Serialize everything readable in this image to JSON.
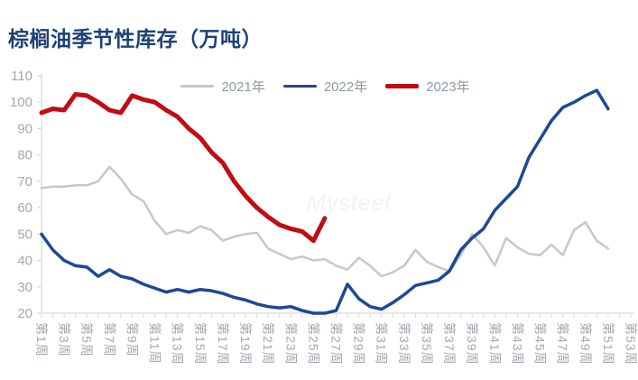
{
  "watermark": "Mysteel",
  "colors": {
    "background": "#ffffff",
    "title": "#1e4077",
    "axis": "#d9d9d9",
    "tick_label": "#a3a7af",
    "legend_text": "#8e98a6",
    "watermark": "#f2f2f4",
    "series_2021": "#c7c7c7",
    "series_2022": "#1c4899",
    "series_2023": "#c00d14"
  },
  "chart_data": {
    "type": "line",
    "title": "棕榈油季节性库存（万吨）",
    "xlabel": "",
    "ylabel": "万吨",
    "ylim": [
      20,
      110
    ],
    "y_ticks": [
      20,
      30,
      40,
      50,
      60,
      70,
      80,
      90,
      100,
      110
    ],
    "x_weeks_total": 53,
    "x_tick_labels": [
      "第1周",
      "第3周",
      "第5周",
      "第7周",
      "第9周",
      "第11周",
      "第13周",
      "第15周",
      "第17周",
      "第19周",
      "第21周",
      "第23周",
      "第25周",
      "第27周",
      "第29周",
      "第31周",
      "第33周",
      "第35周",
      "第37周",
      "第39周",
      "第41周",
      "第43周",
      "第45周",
      "第47周",
      "第49周",
      "第51周",
      "第53周"
    ],
    "grid": false,
    "legend_position": "top-center",
    "series": [
      {
        "name": "2021年",
        "color": "#c7c7c7",
        "stroke_width": 2.5,
        "start_week": 1,
        "values": [
          67.5,
          68,
          68,
          68.5,
          68.5,
          70,
          75.5,
          71,
          65,
          62.5,
          55,
          50,
          51.5,
          50.5,
          53,
          51.5,
          47.5,
          49,
          50,
          50.5,
          44.5,
          42.5,
          40.5,
          41.5,
          40,
          40.5,
          38,
          36.5,
          41,
          38,
          34,
          35.5,
          38,
          44,
          39.5,
          37.5,
          36,
          42,
          50,
          45,
          38,
          48.5,
          45,
          42.5,
          42,
          46,
          42,
          51.5,
          54.5,
          47.5,
          44.5
        ]
      },
      {
        "name": "2022年",
        "color": "#1c4899",
        "stroke_width": 3.5,
        "start_week": 1,
        "values": [
          50,
          44,
          40,
          38,
          37.5,
          34,
          36.5,
          34,
          33,
          31,
          29.5,
          28,
          29,
          28,
          29,
          28.5,
          27.5,
          26,
          25,
          23.5,
          22.5,
          22,
          22.5,
          21,
          20,
          20,
          21,
          31,
          25.5,
          22.5,
          21.5,
          24,
          27,
          30.5,
          31.5,
          32.5,
          36,
          44,
          48.5,
          52,
          59,
          63.5,
          68,
          79,
          86,
          93,
          98,
          100,
          102.5,
          104.5,
          97.5
        ]
      },
      {
        "name": "2023年",
        "color": "#c00d14",
        "stroke_width": 5,
        "start_week": 1,
        "values": [
          96,
          97.5,
          97,
          103,
          102.5,
          100,
          97,
          96,
          102.5,
          101,
          100,
          97,
          94.5,
          90,
          86.5,
          81,
          77,
          70,
          64.5,
          60,
          56.5,
          53.5,
          52,
          51,
          47.5,
          56
        ]
      }
    ]
  }
}
